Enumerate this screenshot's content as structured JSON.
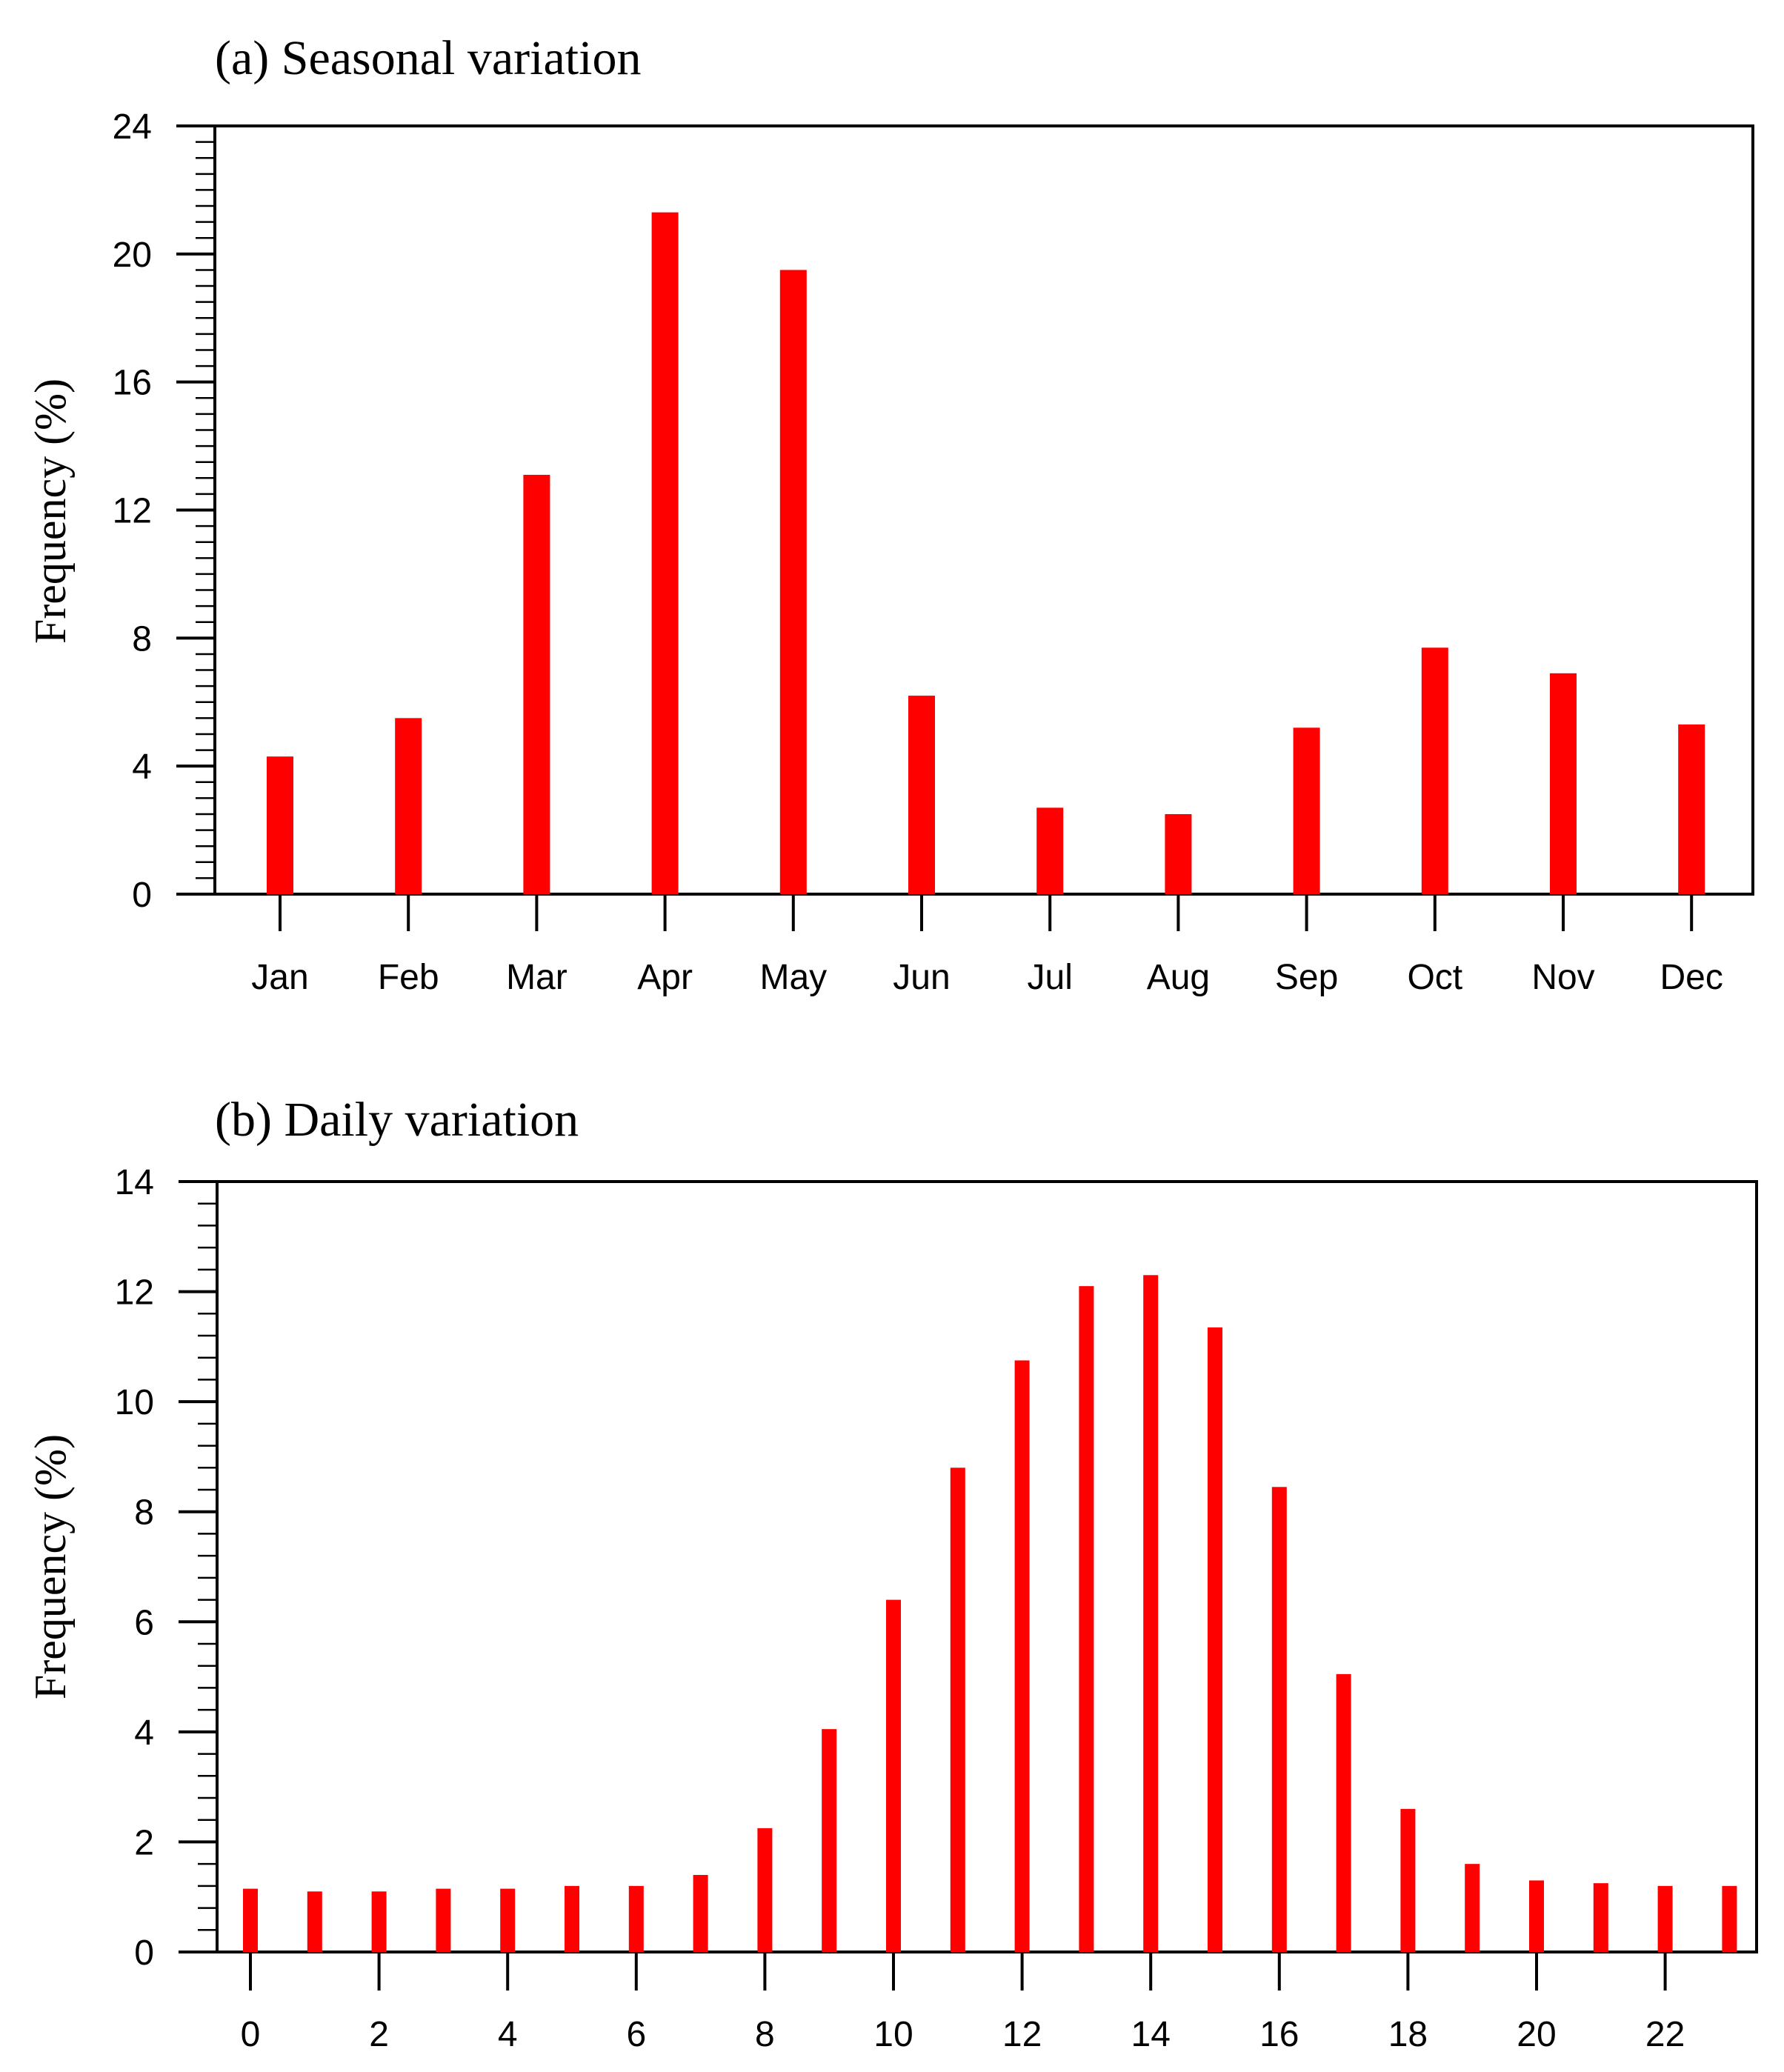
{
  "chart_data": [
    {
      "type": "bar",
      "title": "(a) Seasonal variation",
      "xlabel": "",
      "ylabel": "Frequency (%)",
      "categories": [
        "Jan",
        "Feb",
        "Mar",
        "Apr",
        "May",
        "Jun",
        "Jul",
        "Aug",
        "Sep",
        "Oct",
        "Nov",
        "Dec"
      ],
      "values": [
        4.3,
        5.5,
        13.1,
        21.3,
        19.5,
        6.2,
        2.7,
        2.5,
        5.2,
        7.7,
        6.9,
        5.3
      ],
      "ylim": [
        0,
        24
      ],
      "yticks": [
        "0",
        "4",
        "8",
        "12",
        "16",
        "20",
        "24"
      ],
      "color": "#ff0000",
      "grid": false
    },
    {
      "type": "bar",
      "title": "(b) Daily variation",
      "xlabel": "",
      "ylabel": "Frequency (%)",
      "x": [
        0,
        1,
        2,
        3,
        4,
        5,
        6,
        7,
        8,
        9,
        10,
        11,
        12,
        13,
        14,
        15,
        16,
        17,
        18,
        19,
        20,
        21,
        22,
        23
      ],
      "values": [
        1.15,
        1.1,
        1.1,
        1.15,
        1.15,
        1.2,
        1.2,
        1.4,
        2.25,
        4.05,
        6.4,
        8.8,
        10.75,
        12.1,
        12.3,
        11.35,
        8.45,
        5.05,
        2.6,
        1.6,
        1.3,
        1.25,
        1.2,
        1.2
      ],
      "xticks": [
        "0",
        "2",
        "4",
        "6",
        "8",
        "10",
        "12",
        "14",
        "16",
        "18",
        "20",
        "22"
      ],
      "ylim": [
        0,
        14
      ],
      "yticks": [
        "0",
        "2",
        "4",
        "6",
        "8",
        "10",
        "12",
        "14"
      ],
      "color": "#ff0000",
      "grid": false
    }
  ]
}
